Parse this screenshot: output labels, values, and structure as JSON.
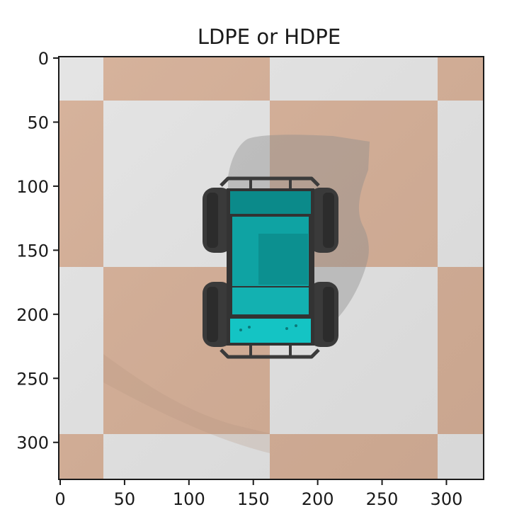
{
  "title": "LDPE or HDPE",
  "image": {
    "width": 330,
    "height": 330,
    "subject": "top-view-robot-car",
    "checker_colors": [
      "#e3e3e3",
      "#d4ae96"
    ],
    "robot_body_color": "#0ea5a5",
    "robot_wheel_color": "#3a3a3a",
    "shadow_color": "#9a9a9a"
  },
  "axes": {
    "x_ticks": [
      "0",
      "50",
      "100",
      "150",
      "200",
      "250",
      "300"
    ],
    "y_ticks": [
      "0",
      "50",
      "100",
      "150",
      "200",
      "250",
      "300"
    ],
    "x_tick_values": [
      0,
      50,
      100,
      150,
      200,
      250,
      300
    ],
    "y_tick_values": [
      0,
      50,
      100,
      150,
      200,
      250,
      300
    ],
    "xlim": [
      0,
      330
    ],
    "ylim": [
      330,
      0
    ]
  }
}
